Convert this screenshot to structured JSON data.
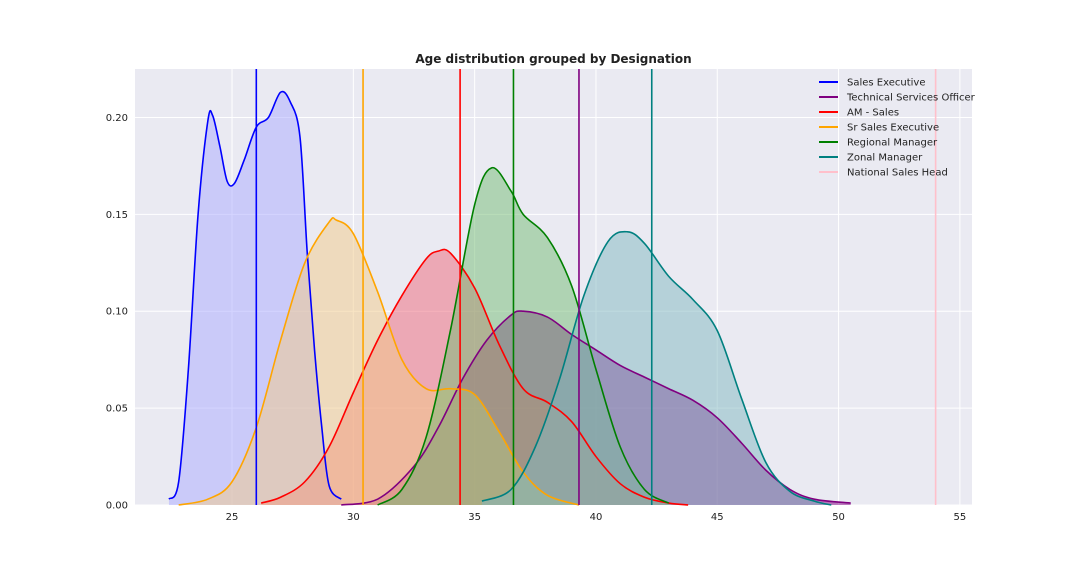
{
  "chart_data": {
    "type": "area",
    "title": "Age distribution grouped by Designation",
    "xlabel": "",
    "ylabel": "",
    "xlim": [
      21,
      55.5
    ],
    "ylim": [
      0,
      0.225
    ],
    "xticks": [
      25,
      30,
      35,
      40,
      45,
      50,
      55
    ],
    "xtick_labels": [
      "25",
      "30",
      "35",
      "40",
      "45",
      "50",
      "55"
    ],
    "yticks": [
      0.0,
      0.05,
      0.1,
      0.15,
      0.2
    ],
    "ytick_labels": [
      "0.00",
      "0.05",
      "0.10",
      "0.15",
      "0.20"
    ],
    "grid": true,
    "background": "#eaeaf2",
    "legend_position": "top-right",
    "series": [
      {
        "name": "Sales Executive",
        "color": "#0000ff",
        "fill": "#aaaaff",
        "mean_line": 26.0,
        "x": [
          22.4,
          22.8,
          23.2,
          23.6,
          24.0,
          24.2,
          24.5,
          24.8,
          25.1,
          25.5,
          26.0,
          26.5,
          27.0,
          27.4,
          27.8,
          28.1,
          28.4,
          28.7,
          29.0,
          29.5
        ],
        "y": [
          0.003,
          0.012,
          0.07,
          0.15,
          0.198,
          0.201,
          0.185,
          0.167,
          0.166,
          0.178,
          0.195,
          0.2,
          0.213,
          0.208,
          0.19,
          0.13,
          0.08,
          0.04,
          0.01,
          0.003
        ]
      },
      {
        "name": "Technical Services Officer",
        "color": "#800080",
        "fill": "#800080",
        "mean_line": 39.3,
        "x": [
          29.5,
          31.0,
          32.5,
          33.5,
          34.5,
          35.5,
          36.5,
          37.0,
          38.0,
          39.0,
          40.0,
          41.0,
          42.0,
          43.0,
          44.0,
          45.0,
          46.0,
          47.0,
          48.0,
          49.0,
          50.5
        ],
        "y": [
          0.0,
          0.003,
          0.02,
          0.04,
          0.065,
          0.085,
          0.098,
          0.1,
          0.097,
          0.088,
          0.08,
          0.072,
          0.066,
          0.06,
          0.054,
          0.045,
          0.032,
          0.018,
          0.008,
          0.003,
          0.001
        ]
      },
      {
        "name": "AM - Sales",
        "color": "#ff0000",
        "fill": "#ee6677",
        "mean_line": 34.4,
        "x": [
          26.2,
          27.0,
          28.0,
          29.0,
          30.0,
          31.0,
          32.0,
          33.0,
          33.5,
          34.0,
          35.0,
          36.0,
          37.0,
          38.0,
          39.0,
          40.0,
          41.0,
          42.0,
          43.0,
          43.8
        ],
        "y": [
          0.001,
          0.004,
          0.012,
          0.03,
          0.058,
          0.085,
          0.108,
          0.127,
          0.131,
          0.13,
          0.112,
          0.083,
          0.06,
          0.053,
          0.043,
          0.025,
          0.011,
          0.004,
          0.001,
          0.0
        ]
      },
      {
        "name": "Sr Sales Executive",
        "color": "#ffa500",
        "fill": "#f2c987",
        "mean_line": 30.4,
        "x": [
          22.8,
          24.0,
          25.0,
          26.0,
          27.0,
          28.0,
          29.0,
          29.3,
          30.0,
          31.0,
          32.0,
          33.0,
          34.0,
          35.0,
          36.0,
          37.0,
          38.0,
          39.3
        ],
        "y": [
          0.0,
          0.003,
          0.012,
          0.04,
          0.085,
          0.125,
          0.146,
          0.147,
          0.14,
          0.11,
          0.075,
          0.06,
          0.06,
          0.057,
          0.038,
          0.017,
          0.005,
          0.0
        ]
      },
      {
        "name": "Regional Manager",
        "color": "#008000",
        "fill": "#73bb73",
        "mean_line": 36.6,
        "x": [
          31.0,
          32.0,
          33.0,
          34.0,
          35.0,
          35.7,
          36.5,
          37.0,
          38.0,
          39.0,
          40.0,
          41.0,
          42.0,
          43.0
        ],
        "y": [
          0.0,
          0.008,
          0.035,
          0.09,
          0.155,
          0.174,
          0.162,
          0.15,
          0.138,
          0.113,
          0.07,
          0.03,
          0.008,
          0.001
        ]
      },
      {
        "name": "Zonal Manager",
        "color": "#008080",
        "fill": "#80b8c0",
        "mean_line": 42.3,
        "x": [
          35.3,
          36.5,
          37.5,
          38.5,
          39.5,
          40.5,
          41.3,
          42.0,
          43.0,
          44.0,
          45.0,
          46.0,
          47.0,
          48.0,
          49.0,
          49.7
        ],
        "y": [
          0.002,
          0.008,
          0.03,
          0.065,
          0.108,
          0.136,
          0.141,
          0.135,
          0.118,
          0.106,
          0.09,
          0.055,
          0.022,
          0.007,
          0.002,
          0.0
        ]
      },
      {
        "name": "National Sales Head",
        "color": "#ffc0cb",
        "fill": "#ffc0cb",
        "mean_line": 54.0,
        "x": [],
        "y": []
      }
    ]
  }
}
